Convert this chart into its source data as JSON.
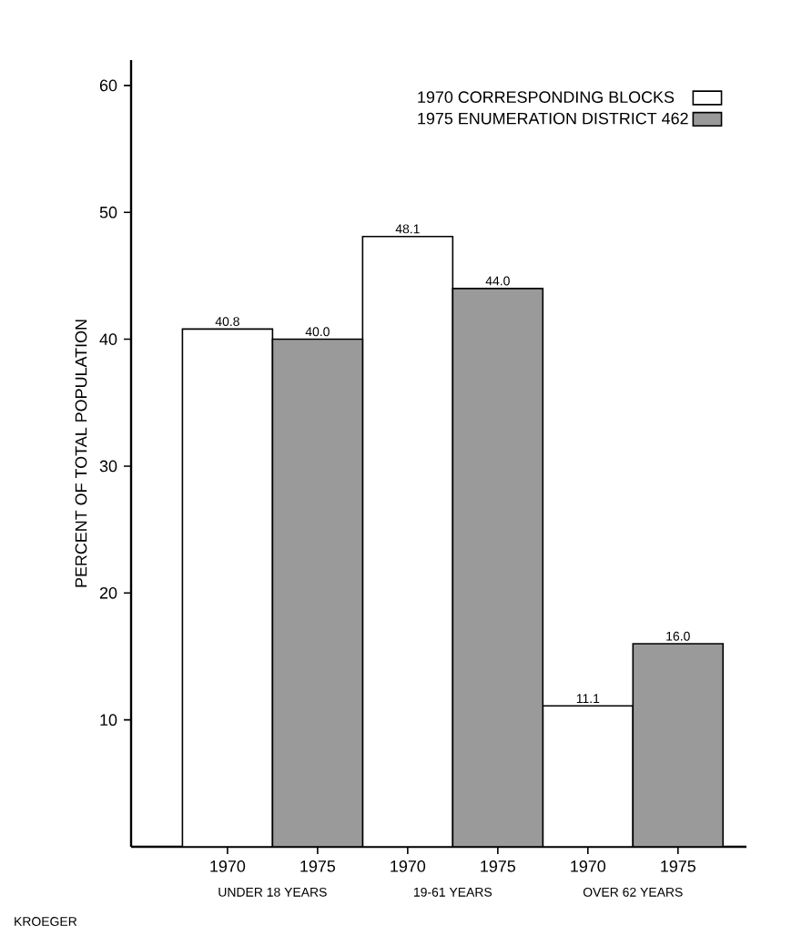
{
  "chart_data": {
    "type": "bar",
    "ylabel": "PERCENT OF TOTAL POPULATION",
    "categories": [
      "1970",
      "1975",
      "1970",
      "1975",
      "1970",
      "1975"
    ],
    "series": [
      {
        "name": "1970 CORRESPONDING BLOCKS",
        "color": "#ffffff",
        "values": [
          40.8,
          null,
          48.1,
          null,
          11.1,
          null
        ],
        "value_labels": [
          "40.8",
          null,
          "48.1",
          null,
          "11.1",
          null
        ]
      },
      {
        "name": "1975 ENUMERATION DISTRICT 462",
        "color": "#9a9a9a",
        "values": [
          null,
          40.0,
          null,
          44.0,
          null,
          16.0
        ],
        "value_labels": [
          null,
          "40.0",
          null,
          "44.0",
          null,
          "16.0"
        ]
      }
    ],
    "ylim": [
      0,
      62
    ],
    "yticks": [
      10,
      20,
      30,
      40,
      50,
      60
    ],
    "legend": "top right",
    "annotations": [
      "UNDER 18 YEARS",
      "19-61 YEARS",
      "OVER 62 YEARS",
      "KROEGER"
    ]
  }
}
